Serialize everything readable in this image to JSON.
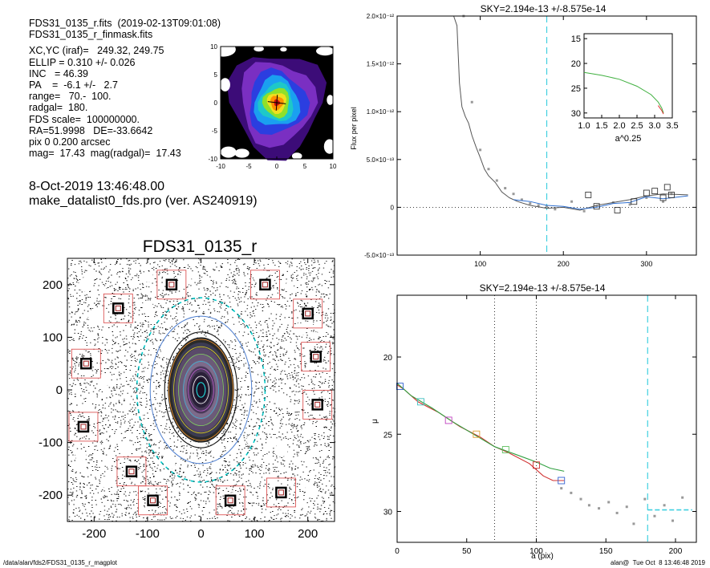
{
  "header": {
    "lines": [
      "FDS31_0135_r.fits  (2019-02-13T09:01:08)",
      "FDS31_0135_r_finmask.fits"
    ],
    "params": [
      "XC,YC (iraf)=   249.32, 249.75",
      "ELLIP = 0.310 +/- 0.026",
      "INC   = 46.39",
      "PA    =  -6.1 +/-   2.7",
      "range=   70.-  100.",
      "radgal=  180.",
      "FDS scale=  100000000.",
      "RA=51.9998   DE=-33.6642",
      "pix 0 0.200 arcsec",
      "mag=  17.43  mag(radgal)=  17.43"
    ],
    "date": "8-Oct-2019 13:46:48.00",
    "program": "make_datalist0_fds.pro (ver. AS240919)"
  },
  "footer": {
    "path": "/data/alan/fds2/FDS31_0135_r_magplot",
    "stamp": "alan@  Tue Oct  8 13:46:48 2019"
  },
  "chart_data": [
    {
      "type": "heatmap",
      "xlim": [
        -10,
        10
      ],
      "ylim": [
        -10,
        10
      ],
      "xticks": [
        "-10",
        "-5",
        "0",
        "5",
        "10"
      ],
      "yticks": [
        "10",
        "5",
        "0",
        "-5",
        "-10"
      ],
      "colormap": [
        "#ffffff",
        "#000000",
        "#3c0c78",
        "#7a2fc2",
        "#2b3ee0",
        "#1aa0f0",
        "#1ec8c8",
        "#8fe02a",
        "#f0e020",
        "#ff9000",
        "#d01010"
      ]
    },
    {
      "type": "scatter",
      "title": "FDS31_0135_r",
      "xlim": [
        -250,
        250
      ],
      "ylim": [
        -250,
        250
      ],
      "xticks": [
        "-200",
        "-100",
        "0",
        "100",
        "200"
      ],
      "yticks": [
        "200",
        "100",
        "0",
        "-100",
        "-200"
      ],
      "ellipse_color": "#00cccc",
      "mask_color": "#d84040"
    },
    {
      "type": "line",
      "title": "SKY=2.194e-13 +/-8.575e-14",
      "ylabel": "Flux per pixel",
      "xlim": [
        0,
        360
      ],
      "ylim": [
        -5e-13,
        2e-12
      ],
      "xticks": [
        "100",
        "200",
        "300"
      ],
      "yticks": [
        "2.0×10⁻¹²",
        "1.5×10⁻¹²",
        "1.0×10⁻¹²",
        "5.0×10⁻¹³",
        "0",
        "-5.0×10⁻¹³"
      ],
      "sky_radius": 180,
      "series": [
        {
          "values": [
            [
              68,
              2e-12
            ],
            [
              72,
              1.9e-12
            ],
            [
              75,
              1.3e-12
            ],
            [
              78,
              1.05e-12
            ],
            [
              82,
              9.5e-13
            ],
            [
              86,
              8.8e-13
            ],
            [
              90,
              7.5e-13
            ],
            [
              95,
              6.3e-13
            ],
            [
              100,
              5.2e-13
            ],
            [
              105,
              4e-13
            ],
            [
              110,
              3.3e-13
            ],
            [
              118,
              2.6e-13
            ],
            [
              126,
              1.6e-13
            ],
            [
              135,
              1e-13
            ],
            [
              145,
              6e-14
            ],
            [
              160,
              2e-14
            ],
            [
              180,
              -1e-14
            ],
            [
              200,
              0.0
            ],
            [
              220,
              -3e-14
            ],
            [
              240,
              2e-14
            ],
            [
              260,
              5e-14
            ],
            [
              280,
              8e-14
            ],
            [
              300,
              1.2e-13
            ],
            [
              320,
              1.4e-13
            ],
            [
              350,
              1.3e-13
            ]
          ]
        },
        {
          "values": [
            [
              140,
              8e-14
            ],
            [
              160,
              6e-14
            ],
            [
              180,
              2e-14
            ],
            [
              200,
              1e-14
            ],
            [
              220,
              -2e-14
            ],
            [
              240,
              0.0
            ],
            [
              260,
              4e-14
            ],
            [
              280,
              5e-14
            ],
            [
              300,
              1.1e-13
            ],
            [
              320,
              9e-14
            ],
            [
              350,
              1.2e-13
            ]
          ]
        }
      ],
      "points": [
        [
          80,
          2e-12
        ],
        [
          90,
          1.1e-12
        ],
        [
          100,
          6e-13
        ],
        [
          110,
          4e-13
        ],
        [
          120,
          2.8e-13
        ],
        [
          130,
          2e-13
        ],
        [
          140,
          1.4e-13
        ],
        [
          150,
          8e-14
        ],
        [
          160,
          4e-14
        ],
        [
          170,
          2e-14
        ],
        [
          180,
          1e-14
        ],
        [
          190,
          -2e-14
        ],
        [
          210,
          6e-14
        ],
        [
          225,
          -4e-14
        ],
        [
          240,
          1e-14
        ],
        [
          260,
          5e-14
        ],
        [
          280,
          3e-14
        ],
        [
          300,
          1e-13
        ],
        [
          320,
          6e-14
        ],
        [
          330,
          1.4e-13
        ]
      ],
      "boxes": [
        [
          230,
          1.3e-13
        ],
        [
          240,
          1e-14
        ],
        [
          265,
          -3e-14
        ],
        [
          285,
          6e-14
        ],
        [
          300,
          1.5e-13
        ],
        [
          310,
          1.7e-13
        ],
        [
          320,
          1e-13
        ],
        [
          325,
          2.1e-13
        ],
        [
          330,
          1.3e-13
        ]
      ]
    },
    {
      "type": "line",
      "xlabel": "a^0.25",
      "xlim": [
        1.0,
        3.5
      ],
      "ylim": [
        31,
        14
      ],
      "xticks": [
        "1.0",
        "1.5",
        "2.0",
        "2.5",
        "3.0",
        "3.5"
      ],
      "yticks": [
        "15",
        "20",
        "25",
        "30"
      ],
      "series": [
        {
          "values": [
            [
              1.0,
              21.8
            ],
            [
              1.5,
              22.4
            ],
            [
              2.0,
              23.2
            ],
            [
              2.5,
              24.6
            ],
            [
              2.9,
              26.3
            ],
            [
              3.1,
              27.8
            ],
            [
              3.2,
              29.0
            ],
            [
              3.25,
              30.0
            ]
          ]
        },
        {
          "values": [
            [
              3.1,
              28.5
            ],
            [
              3.2,
              29.5
            ],
            [
              3.25,
              30.2
            ]
          ]
        }
      ]
    },
    {
      "type": "line",
      "title": "SKY=2.194e-13 +/-8.575e-14",
      "xlabel": "a (pix)",
      "ylabel": "μ",
      "xlim": [
        0,
        215
      ],
      "ylim": [
        32,
        16
      ],
      "xticks": [
        "0",
        "50",
        "100",
        "150",
        "200"
      ],
      "yticks": [
        "20",
        "25",
        "30"
      ],
      "range_lines": [
        70,
        100
      ],
      "sky_radius": 180,
      "sky_level": 29.9,
      "series": [
        {
          "values": [
            [
              0,
              21.8
            ],
            [
              5,
              22.1
            ],
            [
              15,
              22.9
            ],
            [
              30,
              23.6
            ],
            [
              45,
              24.5
            ],
            [
              60,
              25.2
            ],
            [
              70,
              25.8
            ],
            [
              80,
              26.2
            ],
            [
              95,
              26.9
            ],
            [
              105,
              27.7
            ],
            [
              112,
              28.0
            ],
            [
              120,
              28.0
            ]
          ]
        },
        {
          "values": [
            [
              0,
              21.7
            ],
            [
              10,
              22.5
            ],
            [
              25,
              23.3
            ],
            [
              40,
              24.2
            ],
            [
              55,
              25.0
            ],
            [
              70,
              25.8
            ],
            [
              85,
              26.3
            ],
            [
              100,
              26.8
            ],
            [
              110,
              27.2
            ],
            [
              120,
              27.4
            ]
          ]
        }
      ],
      "points": [
        [
          118,
          28.5
        ],
        [
          125,
          28.8
        ],
        [
          132,
          29.2
        ],
        [
          138,
          29.6
        ],
        [
          145,
          29.8
        ],
        [
          152,
          29.4
        ],
        [
          158,
          30.1
        ],
        [
          165,
          29.7
        ],
        [
          170,
          30.8
        ],
        [
          178,
          29.2
        ],
        [
          185,
          30.3
        ],
        [
          192,
          29.6
        ],
        [
          198,
          30.6
        ],
        [
          205,
          29.1
        ]
      ]
    }
  ]
}
